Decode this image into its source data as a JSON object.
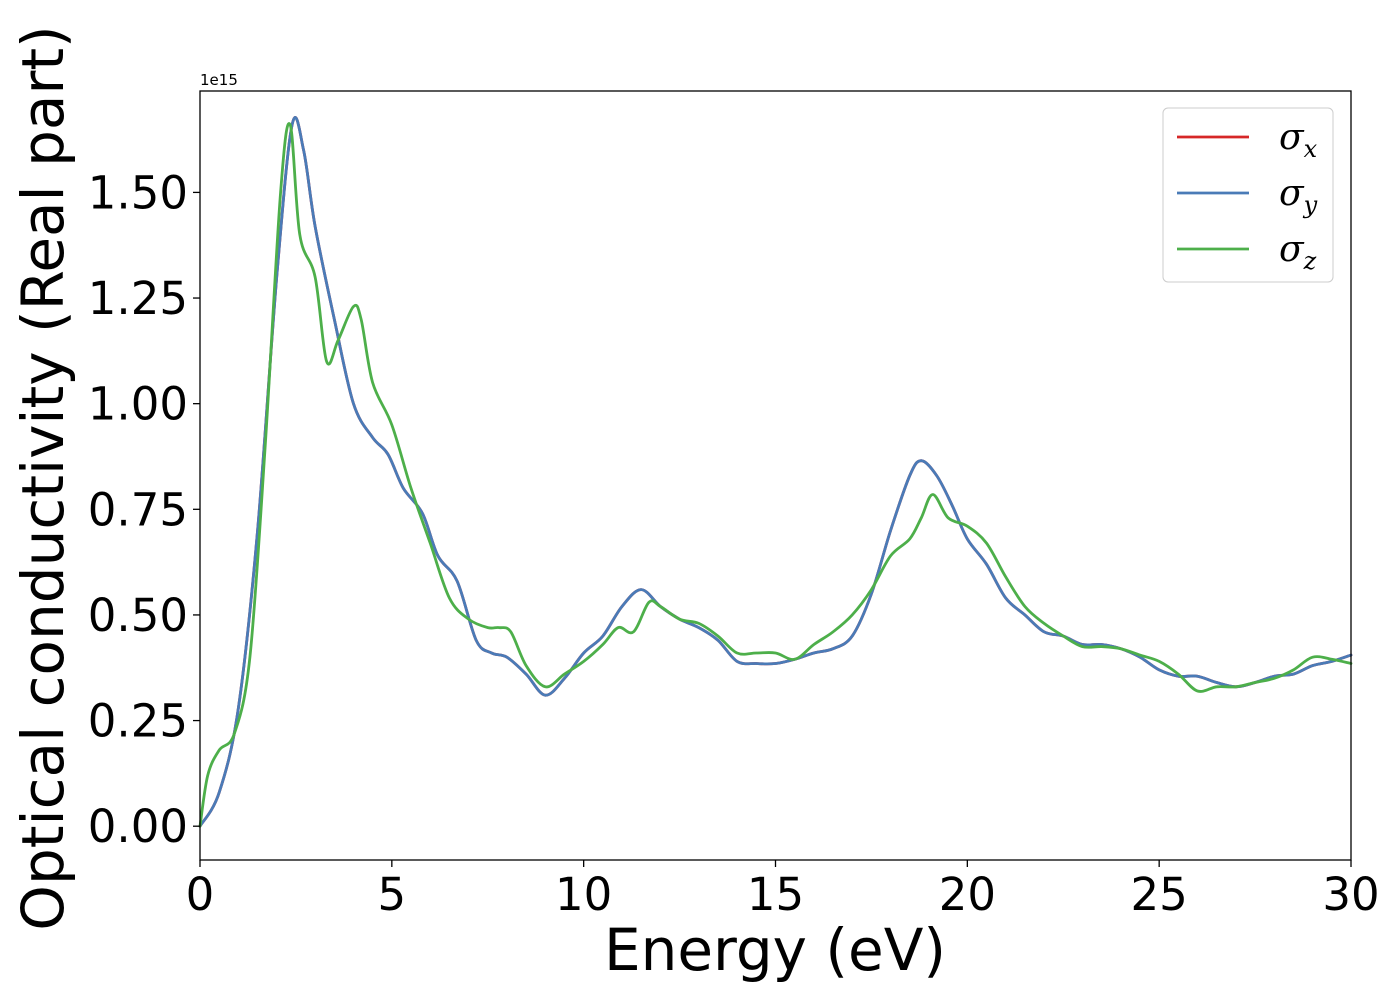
{
  "chart_data": {
    "type": "line",
    "title": "",
    "xlabel": "Energy (eV)",
    "ylabel": "Optical conductivity (Real part)",
    "y_offset_text": "1e15",
    "xlim": [
      0,
      30
    ],
    "ylim": [
      -0.08,
      1.74
    ],
    "x_ticks": [
      0,
      5,
      10,
      15,
      20,
      25,
      30
    ],
    "x_tick_labels": [
      "0",
      "5",
      "10",
      "15",
      "20",
      "25",
      "30"
    ],
    "y_ticks": [
      0.0,
      0.25,
      0.5,
      0.75,
      1.0,
      1.25,
      1.5
    ],
    "y_tick_labels": [
      "0.00",
      "0.25",
      "0.50",
      "0.75",
      "1.00",
      "1.25",
      "1.50"
    ],
    "grid": false,
    "legend_position": "top-right",
    "series": [
      {
        "name": "σx",
        "symbol": "σ",
        "subscript": "x",
        "color": "#d62728",
        "x": [
          0,
          0.5,
          1.0,
          1.5,
          2.0,
          2.4,
          2.7,
          3.0,
          3.5,
          4.0,
          4.5,
          4.9,
          5.3,
          5.8,
          6.2,
          6.7,
          7.2,
          7.6,
          8.0,
          8.5,
          9.0,
          9.5,
          10.0,
          10.5,
          11.0,
          11.5,
          12.0,
          12.5,
          13.0,
          13.5,
          14.0,
          14.5,
          15.0,
          15.5,
          16.0,
          16.5,
          17.0,
          17.5,
          18.0,
          18.5,
          18.8,
          19.2,
          19.6,
          20.0,
          20.5,
          21.0,
          21.5,
          22.0,
          22.5,
          23.0,
          23.5,
          24.0,
          24.5,
          25.0,
          25.5,
          26.0,
          26.5,
          27.0,
          27.5,
          28.0,
          28.5,
          29.0,
          29.5,
          30.0
        ],
        "y": [
          0.0,
          0.08,
          0.28,
          0.7,
          1.3,
          1.66,
          1.6,
          1.42,
          1.2,
          1.0,
          0.92,
          0.88,
          0.8,
          0.74,
          0.64,
          0.58,
          0.44,
          0.41,
          0.4,
          0.36,
          0.31,
          0.35,
          0.41,
          0.45,
          0.52,
          0.56,
          0.52,
          0.49,
          0.47,
          0.44,
          0.39,
          0.385,
          0.385,
          0.395,
          0.41,
          0.42,
          0.45,
          0.55,
          0.7,
          0.83,
          0.865,
          0.83,
          0.76,
          0.68,
          0.62,
          0.54,
          0.5,
          0.46,
          0.45,
          0.43,
          0.43,
          0.42,
          0.4,
          0.37,
          0.355,
          0.355,
          0.34,
          0.33,
          0.34,
          0.355,
          0.36,
          0.38,
          0.39,
          0.405
        ]
      },
      {
        "name": "σy",
        "symbol": "σ",
        "subscript": "y",
        "color": "#4a7bb7",
        "x": [
          0,
          0.5,
          1.0,
          1.5,
          2.0,
          2.4,
          2.7,
          3.0,
          3.5,
          4.0,
          4.5,
          4.9,
          5.3,
          5.8,
          6.2,
          6.7,
          7.2,
          7.6,
          8.0,
          8.5,
          9.0,
          9.5,
          10.0,
          10.5,
          11.0,
          11.5,
          12.0,
          12.5,
          13.0,
          13.5,
          14.0,
          14.5,
          15.0,
          15.5,
          16.0,
          16.5,
          17.0,
          17.5,
          18.0,
          18.5,
          18.8,
          19.2,
          19.6,
          20.0,
          20.5,
          21.0,
          21.5,
          22.0,
          22.5,
          23.0,
          23.5,
          24.0,
          24.5,
          25.0,
          25.5,
          26.0,
          26.5,
          27.0,
          27.5,
          28.0,
          28.5,
          29.0,
          29.5,
          30.0
        ],
        "y": [
          0.0,
          0.08,
          0.28,
          0.7,
          1.3,
          1.66,
          1.6,
          1.42,
          1.2,
          1.0,
          0.92,
          0.88,
          0.8,
          0.74,
          0.64,
          0.58,
          0.44,
          0.41,
          0.4,
          0.36,
          0.31,
          0.35,
          0.41,
          0.45,
          0.52,
          0.56,
          0.52,
          0.49,
          0.47,
          0.44,
          0.39,
          0.385,
          0.385,
          0.395,
          0.41,
          0.42,
          0.45,
          0.55,
          0.7,
          0.83,
          0.865,
          0.83,
          0.76,
          0.68,
          0.62,
          0.54,
          0.5,
          0.46,
          0.45,
          0.43,
          0.43,
          0.42,
          0.4,
          0.37,
          0.355,
          0.355,
          0.34,
          0.33,
          0.34,
          0.355,
          0.36,
          0.38,
          0.39,
          0.405
        ]
      },
      {
        "name": "σz",
        "symbol": "σ",
        "subscript": "z",
        "color": "#4daf4a",
        "x": [
          0,
          0.2,
          0.5,
          0.9,
          1.3,
          1.7,
          2.1,
          2.35,
          2.6,
          3.0,
          3.3,
          3.6,
          4.0,
          4.2,
          4.5,
          5.0,
          5.5,
          6.0,
          6.5,
          7.0,
          7.5,
          7.8,
          8.1,
          8.5,
          9.0,
          9.5,
          10.0,
          10.5,
          10.9,
          11.3,
          11.7,
          12.0,
          12.5,
          13.0,
          13.5,
          14.0,
          14.5,
          15.0,
          15.5,
          16.0,
          16.5,
          17.0,
          17.5,
          18.0,
          18.5,
          18.8,
          19.1,
          19.5,
          20.0,
          20.5,
          21.0,
          21.5,
          22.0,
          22.5,
          23.0,
          23.5,
          24.0,
          24.5,
          25.0,
          25.5,
          26.0,
          26.5,
          27.0,
          27.5,
          28.0,
          28.5,
          29.0,
          29.5,
          30.0
        ],
        "y": [
          0.0,
          0.12,
          0.18,
          0.22,
          0.4,
          0.9,
          1.5,
          1.66,
          1.4,
          1.3,
          1.1,
          1.15,
          1.23,
          1.2,
          1.05,
          0.95,
          0.8,
          0.67,
          0.54,
          0.49,
          0.47,
          0.47,
          0.46,
          0.38,
          0.33,
          0.36,
          0.39,
          0.43,
          0.47,
          0.46,
          0.53,
          0.52,
          0.49,
          0.48,
          0.45,
          0.41,
          0.41,
          0.41,
          0.395,
          0.43,
          0.46,
          0.5,
          0.56,
          0.64,
          0.68,
          0.73,
          0.785,
          0.73,
          0.71,
          0.67,
          0.59,
          0.52,
          0.48,
          0.45,
          0.425,
          0.425,
          0.42,
          0.405,
          0.39,
          0.36,
          0.32,
          0.33,
          0.33,
          0.34,
          0.35,
          0.37,
          0.4,
          0.395,
          0.385
        ]
      }
    ]
  }
}
